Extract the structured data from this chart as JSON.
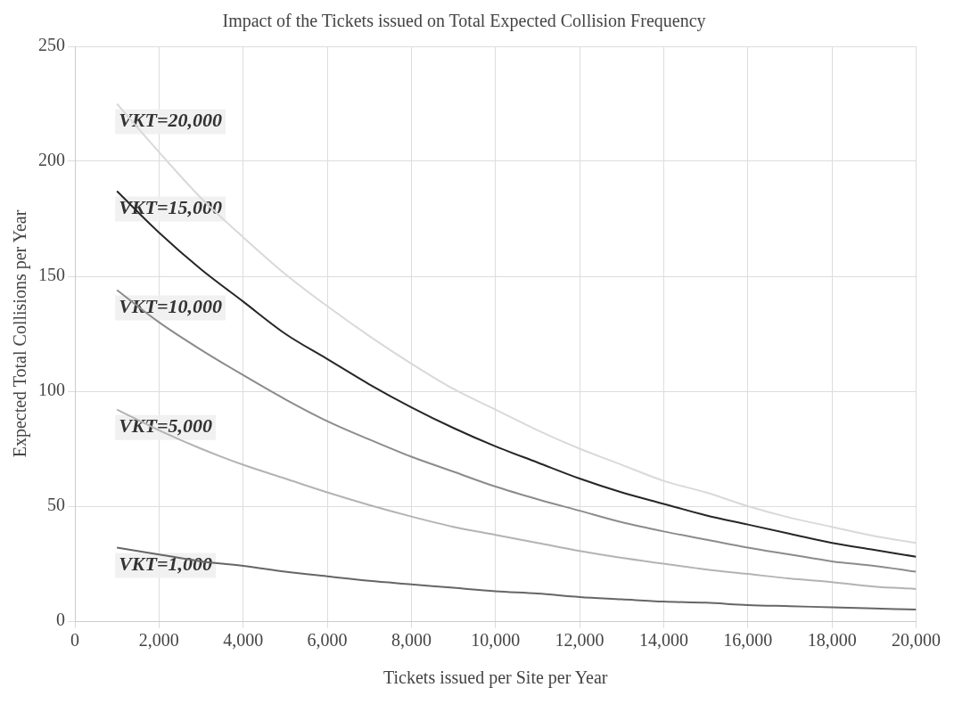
{
  "chart_data": {
    "type": "line",
    "title": "Impact of the Tickets issued on Total Expected Collision Frequency",
    "xlabel": "Tickets issued per Site per Year",
    "ylabel": "Expected Total Collisions per Year",
    "x": [
      1000,
      2000,
      3000,
      4000,
      5000,
      6000,
      7000,
      8000,
      9000,
      10000,
      11000,
      12000,
      13000,
      14000,
      15000,
      16000,
      17000,
      18000,
      19000,
      20000
    ],
    "xlim": [
      0,
      20000
    ],
    "xticks": [
      0,
      {
        "value": 2000,
        "label": "2,000"
      },
      {
        "value": 4000,
        "label": "4,000"
      },
      {
        "value": 6000,
        "label": "6,000"
      },
      {
        "value": 8000,
        "label": "8,000"
      },
      {
        "value": 10000,
        "label": "10,000"
      },
      {
        "value": 12000,
        "label": "12,000"
      },
      {
        "value": 14000,
        "label": "14,000"
      },
      {
        "value": 16000,
        "label": "16,000"
      },
      {
        "value": 18000,
        "label": "18,000"
      },
      {
        "value": 20000,
        "label": "20,000"
      }
    ],
    "ylim": [
      0,
      250
    ],
    "yticks": [
      0,
      50,
      100,
      150,
      200,
      250
    ],
    "grid": true,
    "legend": false,
    "marker": "none",
    "line_style": "solid",
    "series": [
      {
        "name": "VKT=20,000",
        "color": "#d9d9d9",
        "values": [
          225,
          204,
          184,
          167,
          151,
          137,
          124,
          112,
          101,
          92,
          83,
          75,
          68,
          61,
          56,
          50,
          45,
          41,
          37,
          34
        ]
      },
      {
        "name": "VKT=15,000",
        "color": "#262626",
        "values": [
          187,
          169,
          153,
          139,
          125,
          114,
          103,
          93,
          84,
          76,
          69,
          62,
          56,
          51,
          46,
          42,
          38,
          34,
          31,
          28
        ]
      },
      {
        "name": "VKT=10,000",
        "color": "#8c8c8c",
        "values": [
          144,
          130,
          118,
          107,
          96.5,
          87,
          79,
          71.5,
          65,
          58.5,
          53,
          48,
          43,
          39,
          35.5,
          32,
          29,
          26,
          24,
          21.5
        ]
      },
      {
        "name": "VKT=5,000",
        "color": "#b3b3b3",
        "values": [
          92,
          83,
          75,
          68,
          62,
          56,
          50.5,
          45.5,
          41,
          37.5,
          34,
          30.5,
          27.5,
          25,
          22.5,
          20.5,
          18.5,
          17,
          15,
          14
        ]
      },
      {
        "name": "VKT=1,000",
        "color": "#666666",
        "values": [
          32,
          29,
          26,
          24,
          21.5,
          19.5,
          17.5,
          16,
          14.5,
          13,
          12,
          10.5,
          9.5,
          8.5,
          8,
          7,
          6.5,
          6,
          5.5,
          5
        ]
      }
    ]
  }
}
